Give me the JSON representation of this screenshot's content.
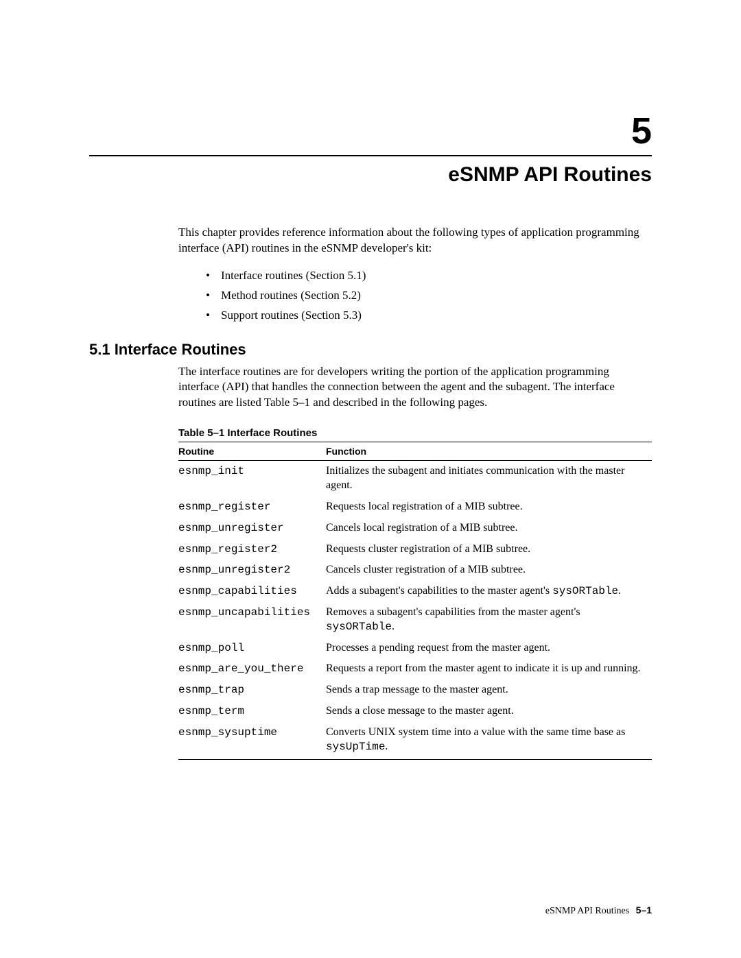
{
  "chapter": {
    "number": "5",
    "title": "eSNMP API Routines"
  },
  "intro": {
    "paragraph": "This chapter provides reference information about the following types of application programming interface (API) routines in the eSNMP developer's kit:",
    "bullets": [
      "Interface routines (Section 5.1)",
      "Method routines (Section 5.2)",
      "Support routines (Section 5.3)"
    ]
  },
  "section": {
    "heading": "5.1 Interface Routines",
    "paragraph": "The interface routines are for developers writing the portion of the application programming interface (API) that handles the connection between the agent and the subagent. The interface routines are listed Table 5–1 and described in the following pages."
  },
  "table": {
    "caption": "Table 5–1   Interface Routines",
    "columns": [
      "Routine",
      "Function"
    ],
    "rows": [
      {
        "routine": "esnmp_init",
        "function_pre": "Initializes the subagent and initiates communication with the master agent.",
        "mono": "",
        "function_post": ""
      },
      {
        "routine": "esnmp_register",
        "function_pre": "Requests local registration of a MIB subtree.",
        "mono": "",
        "function_post": ""
      },
      {
        "routine": "esnmp_unregister",
        "function_pre": "Cancels local registration of a MIB subtree.",
        "mono": "",
        "function_post": ""
      },
      {
        "routine": "esnmp_register2",
        "function_pre": "Requests cluster registration of a MIB subtree.",
        "mono": "",
        "function_post": ""
      },
      {
        "routine": "esnmp_unregister2",
        "function_pre": "Cancels cluster registration of a MIB subtree.",
        "mono": "",
        "function_post": ""
      },
      {
        "routine": "esnmp_capabilities",
        "function_pre": "Adds a subagent's capabilities to the master agent's ",
        "mono": "sysORTable",
        "function_post": "."
      },
      {
        "routine": "esnmp_uncapabilities",
        "function_pre": "Removes a subagent's capabilities from the master agent's ",
        "mono": "sysORTable",
        "function_post": "."
      },
      {
        "routine": "esnmp_poll",
        "function_pre": "Processes a pending request from the master agent.",
        "mono": "",
        "function_post": ""
      },
      {
        "routine": "esnmp_are_you_there",
        "function_pre": "Requests a report from the master agent to indicate it is up and running.",
        "mono": "",
        "function_post": ""
      },
      {
        "routine": "esnmp_trap",
        "function_pre": "Sends a trap message to the master agent.",
        "mono": "",
        "function_post": ""
      },
      {
        "routine": "esnmp_term",
        "function_pre": "Sends a close message to the master agent.",
        "mono": "",
        "function_post": ""
      },
      {
        "routine": "esnmp_sysuptime",
        "function_pre": "Converts UNIX system time into a value with the same time base as ",
        "mono": "sysUpTime",
        "function_post": "."
      }
    ]
  },
  "footer": {
    "label": "eSNMP API Routines",
    "page": "5–1"
  }
}
